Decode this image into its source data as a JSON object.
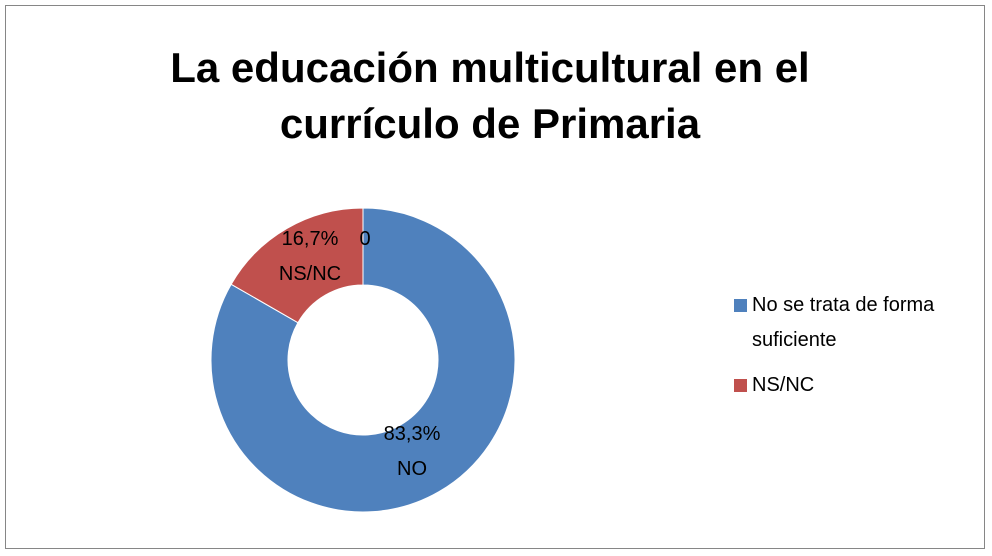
{
  "chart_data": {
    "type": "donut",
    "title": "La educación multicultural en el currículo de Primaria",
    "categories": [
      "No se trata de forma suficiente",
      "NS/NC",
      null
    ],
    "values": [
      83.3,
      16.7,
      0
    ],
    "value_labels": [
      "83,3%",
      "16,7%",
      "0"
    ],
    "data_label_names": [
      "NO",
      "NS/NC",
      null
    ],
    "colors": [
      "#4f81bd",
      "#c0504d",
      null
    ],
    "legend": "right"
  }
}
